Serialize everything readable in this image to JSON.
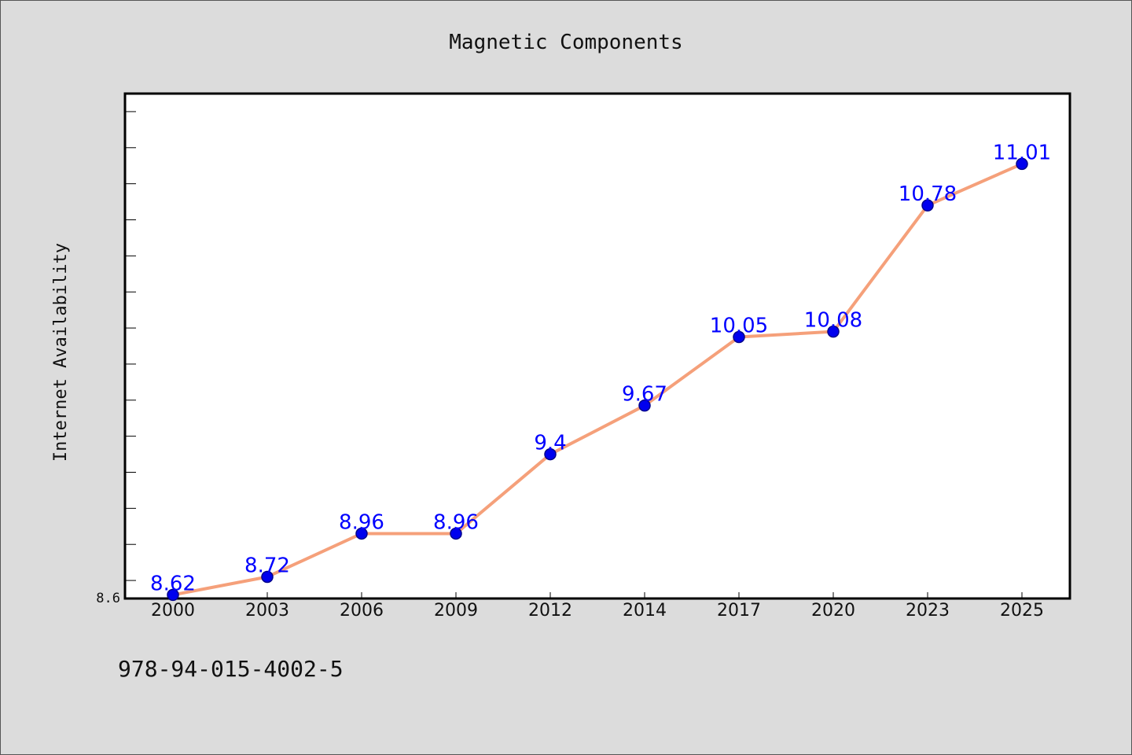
{
  "chart_data": {
    "type": "line",
    "title": "Magnetic Components",
    "xlabel": "",
    "ylabel": "Internet Availability",
    "categories": [
      "2000",
      "2003",
      "2006",
      "2009",
      "2012",
      "2014",
      "2017",
      "2020",
      "2023",
      "2025"
    ],
    "series": [
      {
        "values": [
          8.62,
          8.72,
          8.96,
          8.96,
          9.4,
          9.67,
          10.05,
          10.08,
          10.78,
          11.01
        ]
      }
    ],
    "data_labels": [
      "8.62",
      "8.72",
      "8.96",
      "8.96",
      "9.4",
      "9.67",
      "10.05",
      "10.08",
      "10.78",
      "11.01"
    ],
    "y_tick_label": "8.6",
    "ylim": [
      8.6,
      11.4
    ],
    "grid": false,
    "colors": {
      "line": "#f5a07a",
      "marker": "#0000ee",
      "marker_edge": "#00008b",
      "data_label": "#0000ff",
      "plot_background": "#ffffff",
      "figure_background": "#dcdcdc"
    }
  },
  "footer": {
    "isbn": "978-94-015-4002-5"
  }
}
